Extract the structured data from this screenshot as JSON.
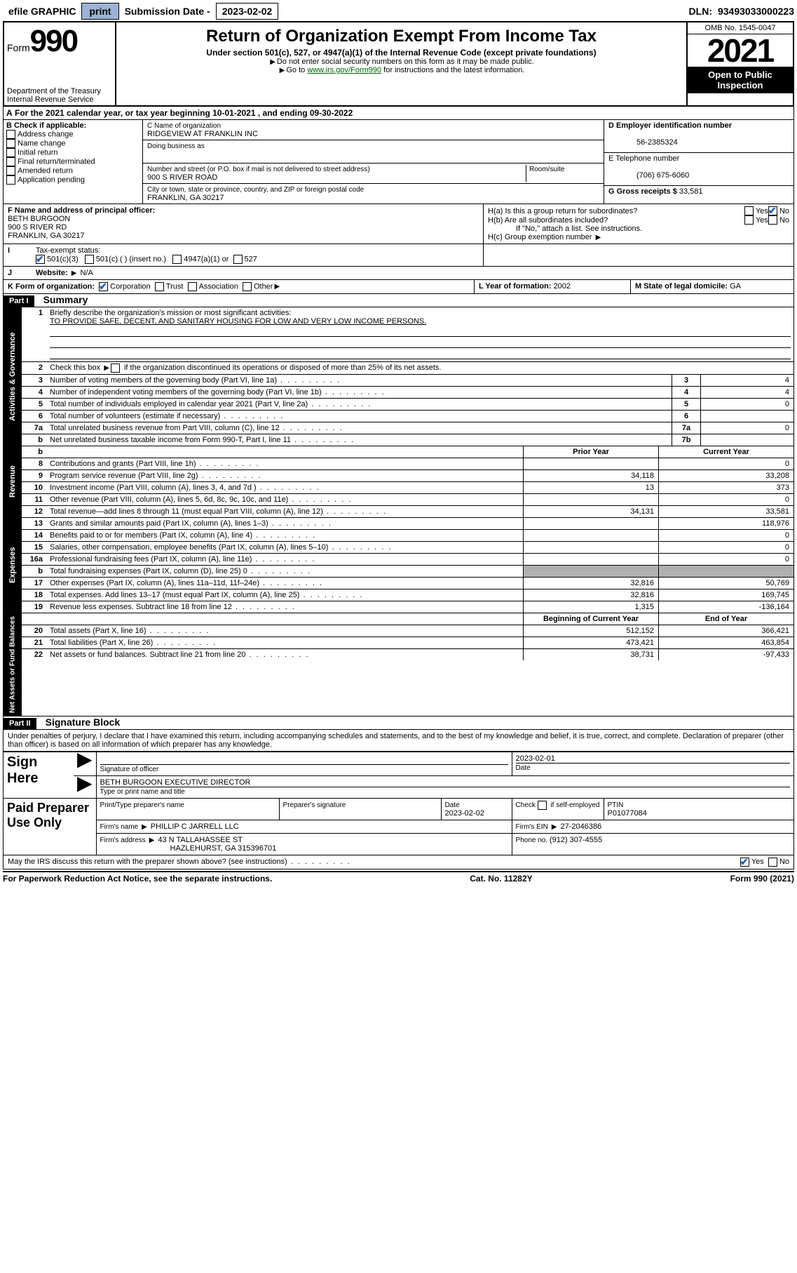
{
  "topbar": {
    "efile": "efile GRAPHIC",
    "print": "print",
    "sub_lbl": "Submission Date - ",
    "sub_val": "2023-02-02",
    "dln_lbl": "DLN: ",
    "dln_val": "93493033000223"
  },
  "header": {
    "form_word": "Form",
    "form_num": "990",
    "dept": "Department of the Treasury",
    "irs": "Internal Revenue Service",
    "title": "Return of Organization Exempt From Income Tax",
    "sub1": "Under section 501(c), 527, or 4947(a)(1) of the Internal Revenue Code (except private foundations)",
    "sub2": "Do not enter social security numbers on this form as it may be made public.",
    "sub3a": "Go to ",
    "sub3b": "www.irs.gov/Form990",
    "sub3c": " for instructions and the latest information.",
    "omb": "OMB No. 1545-0047",
    "year": "2021",
    "inspect1": "Open to Public",
    "inspect2": "Inspection"
  },
  "rowA": {
    "a": "A",
    "text1": " For the 2021 calendar year, or tax year beginning ",
    "begin": "10-01-2021",
    "text2": " , and ending ",
    "end": "09-30-2022"
  },
  "boxB": {
    "hdr": "B Check if applicable:",
    "opts": [
      "Address change",
      "Name change",
      "Initial return",
      "Final return/terminated",
      "Amended return",
      "Application pending"
    ]
  },
  "boxC": {
    "name_lbl": "C Name of organization",
    "name": "RIDGEVIEW AT FRANKLIN INC",
    "dba_lbl": "Doing business as",
    "dba": "",
    "addr_lbl": "Number and street (or P.O. box if mail is not delivered to street address)",
    "room_lbl": "Room/suite",
    "addr": "900 S RIVER ROAD",
    "city_lbl": "City or town, state or province, country, and ZIP or foreign postal code",
    "city": "FRANKLIN, GA  30217"
  },
  "boxD": {
    "lbl": "D Employer identification number",
    "val": "56-2385324"
  },
  "boxE": {
    "lbl": "E Telephone number",
    "val": "(706) 675-6060"
  },
  "boxG": {
    "lbl": "G Gross receipts $ ",
    "val": "33,581"
  },
  "boxF": {
    "lbl": "F  Name and address of principal officer:",
    "name": "BETH BURGOON",
    "addr1": "900 S RIVER RD",
    "addr2": "FRANKLIN, GA  30217"
  },
  "boxH": {
    "a": "H(a)  Is this a group return for subordinates?",
    "b": "H(b)  Are all subordinates included?",
    "note": "If \"No,\" attach a list. See instructions.",
    "c": "H(c)  Group exemption number "
  },
  "boxI": {
    "lbl": "Tax-exempt status:",
    "o1": "501(c)(3)",
    "o2": "501(c) (  )  (insert no.)",
    "o3": "4947(a)(1) or",
    "o4": "527"
  },
  "boxJ": {
    "lbl": "Website: ",
    "val": "N/A"
  },
  "boxK": {
    "lbl": "K Form of organization:",
    "o1": "Corporation",
    "o2": "Trust",
    "o3": "Association",
    "o4": "Other"
  },
  "boxL": {
    "lbl": "L Year of formation: ",
    "val": "2002"
  },
  "boxM": {
    "lbl": "M State of legal domicile: ",
    "val": "GA"
  },
  "part1": {
    "hdr": "Part I",
    "title": "Summary",
    "tab_ag": "Activities & Governance",
    "tab_rev": "Revenue",
    "tab_exp": "Expenses",
    "tab_na": "Net Assets or Fund Balances",
    "l1a": "Briefly describe the organization's mission or most significant activities:",
    "l1b": "TO PROVIDE SAFE, DECENT, AND SANITARY HOUSING FOR LOW AND VERY LOW INCOME PERSONS.",
    "l2": "Check this box      if the organization discontinued its operations or disposed of more than 25% of its net assets.",
    "lines_ag": [
      {
        "n": "3",
        "t": "Number of voting members of the governing body (Part VI, line 1a)",
        "bn": "3",
        "bv": "4"
      },
      {
        "n": "4",
        "t": "Number of independent voting members of the governing body (Part VI, line 1b)",
        "bn": "4",
        "bv": "4"
      },
      {
        "n": "5",
        "t": "Total number of individuals employed in calendar year 2021 (Part V, line 2a)",
        "bn": "5",
        "bv": "0"
      },
      {
        "n": "6",
        "t": "Total number of volunteers (estimate if necessary)",
        "bn": "6",
        "bv": ""
      },
      {
        "n": "7a",
        "t": "Total unrelated business revenue from Part VIII, column (C), line 12",
        "bn": "7a",
        "bv": "0"
      },
      {
        "n": "b",
        "t": "Net unrelated business taxable income from Form 990-T, Part I, line 11",
        "bn": "7b",
        "bv": ""
      }
    ],
    "hdr_prior": "Prior Year",
    "hdr_curr": "Current Year",
    "lines_rev": [
      {
        "n": "8",
        "t": "Contributions and grants (Part VIII, line 1h)",
        "p": "",
        "c": "0"
      },
      {
        "n": "9",
        "t": "Program service revenue (Part VIII, line 2g)",
        "p": "34,118",
        "c": "33,208"
      },
      {
        "n": "10",
        "t": "Investment income (Part VIII, column (A), lines 3, 4, and 7d )",
        "p": "13",
        "c": "373"
      },
      {
        "n": "11",
        "t": "Other revenue (Part VIII, column (A), lines 5, 6d, 8c, 9c, 10c, and 11e)",
        "p": "",
        "c": "0"
      },
      {
        "n": "12",
        "t": "Total revenue—add lines 8 through 11 (must equal Part VIII, column (A), line 12)",
        "p": "34,131",
        "c": "33,581"
      }
    ],
    "lines_exp": [
      {
        "n": "13",
        "t": "Grants and similar amounts paid (Part IX, column (A), lines 1–3)",
        "p": "",
        "c": "118,976"
      },
      {
        "n": "14",
        "t": "Benefits paid to or for members (Part IX, column (A), line 4)",
        "p": "",
        "c": "0"
      },
      {
        "n": "15",
        "t": "Salaries, other compensation, employee benefits (Part IX, column (A), lines 5–10)",
        "p": "",
        "c": "0"
      },
      {
        "n": "16a",
        "t": "Professional fundraising fees (Part IX, column (A), line 11e)",
        "p": "",
        "c": "0"
      },
      {
        "n": "b",
        "t": "Total fundraising expenses (Part IX, column (D), line 25)  0",
        "p": "grey",
        "c": "grey"
      },
      {
        "n": "17",
        "t": "Other expenses (Part IX, column (A), lines 11a–11d, 11f–24e)",
        "p": "32,816",
        "c": "50,769"
      },
      {
        "n": "18",
        "t": "Total expenses. Add lines 13–17 (must equal Part IX, column (A), line 25)",
        "p": "32,816",
        "c": "169,745"
      },
      {
        "n": "19",
        "t": "Revenue less expenses. Subtract line 18 from line 12",
        "p": "1,315",
        "c": "-136,164"
      }
    ],
    "hdr_begin": "Beginning of Current Year",
    "hdr_end": "End of Year",
    "lines_na": [
      {
        "n": "20",
        "t": "Total assets (Part X, line 16)",
        "p": "512,152",
        "c": "366,421"
      },
      {
        "n": "21",
        "t": "Total liabilities (Part X, line 26)",
        "p": "473,421",
        "c": "463,854"
      },
      {
        "n": "22",
        "t": "Net assets or fund balances. Subtract line 21 from line 20",
        "p": "38,731",
        "c": "-97,433"
      }
    ]
  },
  "part2": {
    "hdr": "Part II",
    "title": "Signature Block",
    "decl": "Under penalties of perjury, I declare that I have examined this return, including accompanying schedules and statements, and to the best of my knowledge and belief, it is true, correct, and complete. Declaration of preparer (other than officer) is based on all information of which preparer has any knowledge.",
    "sign_here": "Sign Here",
    "sig_officer": "Signature of officer",
    "sig_date_lbl": "Date",
    "sig_date": "2023-02-01",
    "officer_name": "BETH BURGOON EXECUTIVE DIRECTOR",
    "officer_sub": "Type or print name and title",
    "paid": "Paid Preparer Use Only",
    "pt_name_lbl": "Print/Type preparer's name",
    "pt_sig_lbl": "Preparer's signature",
    "pt_date_lbl": "Date",
    "pt_date": "2023-02-02",
    "pt_self": "Check      if self-employed",
    "ptin_lbl": "PTIN",
    "ptin": "P01077084",
    "firm_name_lbl": "Firm's name   ",
    "firm_name": "PHILLIP C JARRELL LLC",
    "firm_ein_lbl": "Firm's EIN  ",
    "firm_ein": "27-2046386",
    "firm_addr_lbl": "Firm's address  ",
    "firm_addr1": "43 N TALLAHASSEE ST",
    "firm_addr2": "HAZLEHURST, GA  315396701",
    "phone_lbl": "Phone no. ",
    "phone": "(912) 307-4555",
    "may_irs": "May the IRS discuss this return with the preparer shown above? (see instructions)",
    "yes": "Yes",
    "no": "No"
  },
  "footer": {
    "left": "For Paperwork Reduction Act Notice, see the separate instructions.",
    "mid": "Cat. No. 11282Y",
    "right": "Form 990 (2021)"
  },
  "yn": {
    "yes": "Yes",
    "no": "No"
  }
}
